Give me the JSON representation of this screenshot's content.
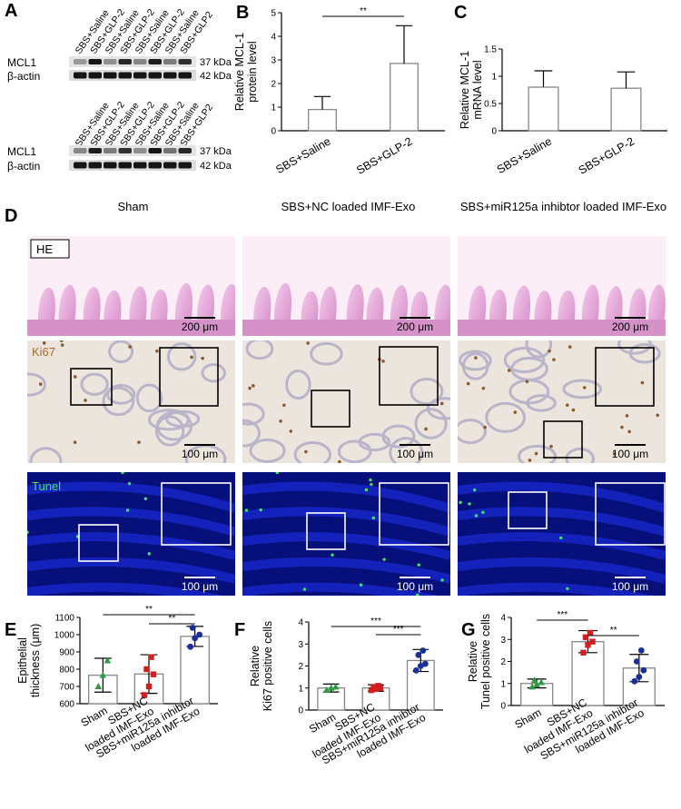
{
  "panel_letters": {
    "A": "A",
    "B": "B",
    "C": "C",
    "D": "D",
    "E": "E",
    "F": "F",
    "G": "G"
  },
  "blot": {
    "lanes": [
      "SBS+Saline",
      "SBS+GLP-2",
      "SBS+Saline",
      "SBS+GLP-2",
      "SBS+Saline",
      "SBS+GLP-2",
      "SBS+Saline",
      "SBS+GLP2"
    ],
    "row1_label": "MCL1",
    "row2_label": "β-actin",
    "kda1": "37 kDa",
    "kda2": "42 kDa"
  },
  "histology": {
    "columns": [
      "Sham",
      "SBS+NC loaded IMF-Exo",
      "SBS+miR125a inhibtor loaded IMF-Exo"
    ],
    "rows": [
      "HE",
      "Ki67",
      "Tunel"
    ],
    "scale_he": "200 μm",
    "scale_ki67": "100 μm",
    "scale_tunel": "100 μm",
    "colors": {
      "he": "#e7a6d6",
      "ki67": "#ece5dd",
      "tunel": "#07107a",
      "tunel_dot": "#3de36a",
      "ki67_dot": "#8a5a2a"
    }
  },
  "chart_data": [
    {
      "id": "B",
      "type": "bar",
      "ylabel": "Relative MCL-1\nprotein level",
      "ylim": [
        0,
        5
      ],
      "yticks": [
        0,
        1,
        2,
        3,
        4,
        5
      ],
      "categories": [
        "SBS+Saline",
        "SBS+GLP-2"
      ],
      "values": [
        0.9,
        2.85
      ],
      "errors": [
        0.55,
        1.6
      ],
      "significance": [
        {
          "pair": [
            0,
            1
          ],
          "label": "**"
        }
      ]
    },
    {
      "id": "C",
      "type": "bar",
      "ylabel": "Relative MCL-1\nmRNA level",
      "ylim": [
        0,
        1.5
      ],
      "yticks": [
        0,
        0.5,
        1,
        1.5
      ],
      "categories": [
        "SBS+Saline",
        "SBS+GLP-2"
      ],
      "values": [
        0.8,
        0.78
      ],
      "errors": [
        0.3,
        0.3
      ],
      "significance": []
    },
    {
      "id": "E",
      "type": "bar",
      "ylabel": "Epithelial\nthickness (μm)",
      "ylim": [
        600,
        1100
      ],
      "yticks": [
        600,
        700,
        800,
        900,
        1000,
        1100
      ],
      "categories": [
        "Sham",
        "SBS+NC\nloaded IMF-Exo",
        "SBS+miR125a inhibtor\nloaded IMF-Exo"
      ],
      "values": [
        765,
        772,
        990
      ],
      "errors": [
        98,
        112,
        58
      ],
      "points": [
        [
          700,
          765,
          850
        ],
        [
          650,
          700,
          770,
          800,
          870
        ],
        [
          930,
          980,
          1000,
          1040
        ]
      ],
      "point_colors": [
        "#2e9a44",
        "#d11f1f",
        "#1b2f9a"
      ],
      "significance": [
        {
          "pair": [
            0,
            2
          ],
          "label": "**"
        },
        {
          "pair": [
            1,
            2
          ],
          "label": "**"
        }
      ]
    },
    {
      "id": "F",
      "type": "bar",
      "ylabel": "Relative\nKi67 positive cells",
      "ylim": [
        0,
        4
      ],
      "yticks": [
        0,
        1,
        2,
        3,
        4
      ],
      "categories": [
        "Sham",
        "SBS+NC\nloaded IMF-Exo",
        "SBS+miR125a inhibtor\nloaded IMF-Exo"
      ],
      "values": [
        1.0,
        1.0,
        2.25
      ],
      "errors": [
        0.18,
        0.15,
        0.5
      ],
      "points": [
        [
          0.9,
          1.0,
          1.05
        ],
        [
          0.9,
          0.95,
          1.0,
          1.05,
          1.1
        ],
        [
          1.8,
          2.0,
          2.1,
          2.5,
          2.7
        ]
      ],
      "point_colors": [
        "#2e9a44",
        "#d11f1f",
        "#1b2f9a"
      ],
      "significance": [
        {
          "pair": [
            0,
            2
          ],
          "label": "***"
        },
        {
          "pair": [
            1,
            2
          ],
          "label": "***"
        }
      ]
    },
    {
      "id": "G",
      "type": "bar",
      "ylabel": "Relative\nTunel positive cells",
      "ylim": [
        0,
        4
      ],
      "yticks": [
        0,
        1,
        2,
        3,
        4
      ],
      "categories": [
        "Sham",
        "SBS+NC\nloaded IMF-Exo",
        "SBS+miR125a inhibtor\nloaded IMF-Exo"
      ],
      "values": [
        1.0,
        2.9,
        1.7
      ],
      "errors": [
        0.2,
        0.5,
        0.62
      ],
      "points": [
        [
          0.85,
          0.95,
          1.05,
          1.15
        ],
        [
          2.4,
          2.75,
          2.9,
          3.1,
          3.3
        ],
        [
          1.1,
          1.3,
          1.6,
          2.0,
          2.5
        ]
      ],
      "point_colors": [
        "#2e9a44",
        "#d11f1f",
        "#1b2f9a"
      ],
      "significance": [
        {
          "pair": [
            0,
            1
          ],
          "label": "***"
        },
        {
          "pair": [
            1,
            2
          ],
          "label": "**"
        }
      ]
    }
  ]
}
